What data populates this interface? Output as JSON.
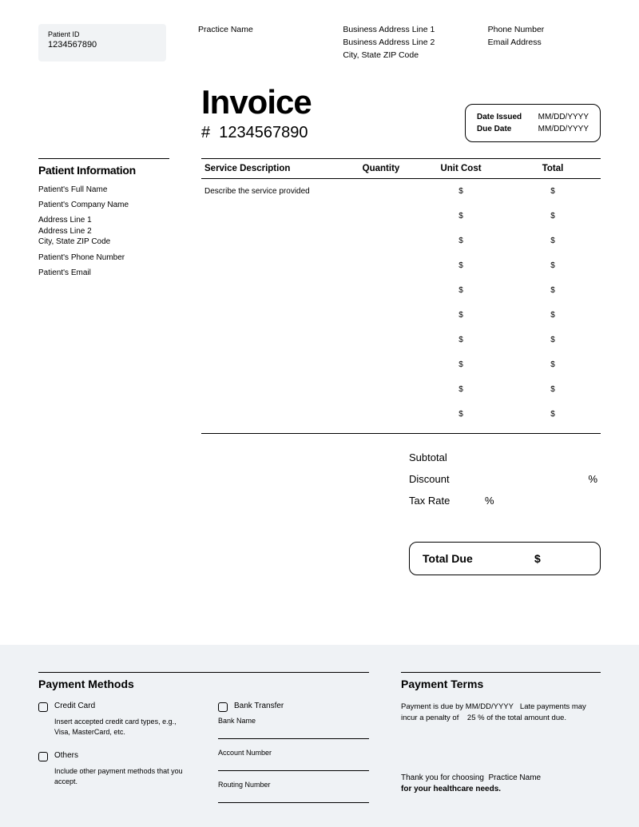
{
  "header": {
    "patient_id_label": "Patient ID",
    "patient_id_value": "1234567890",
    "practice_name": "Practice Name",
    "address_line1": "Business Address Line 1",
    "address_line2": "Business Address Line 2",
    "city_state_zip": "City, State ZIP Code",
    "phone_label": "Phone Number",
    "email_label": "Email Address"
  },
  "invoice": {
    "title": "Invoice",
    "number_prefix": "#",
    "number": "1234567890",
    "date_issued_label": "Date Issued",
    "date_issued_value": "MM/DD/YYYY",
    "due_date_label": "Due Date",
    "due_date_value": "MM/DD/YYYY"
  },
  "patient_info": {
    "title": "Patient Information",
    "full_name": "Patient's Full Name",
    "company": "Patient's Company Name",
    "addr1": "Address Line 1",
    "addr2": "Address Line 2",
    "city": "City, State ZIP Code",
    "phone": "Patient's Phone Number",
    "email": "Patient's Email"
  },
  "table": {
    "columns": [
      "Service Description",
      "Quantity",
      "Unit Cost",
      "Total"
    ],
    "rows": [
      {
        "desc": "Describe the service provided",
        "qty": "",
        "unit": "$",
        "total": "$"
      },
      {
        "desc": "",
        "qty": "",
        "unit": "$",
        "total": "$"
      },
      {
        "desc": "",
        "qty": "",
        "unit": "$",
        "total": "$"
      },
      {
        "desc": "",
        "qty": "",
        "unit": "$",
        "total": "$"
      },
      {
        "desc": "",
        "qty": "",
        "unit": "$",
        "total": "$"
      },
      {
        "desc": "",
        "qty": "",
        "unit": "$",
        "total": "$"
      },
      {
        "desc": "",
        "qty": "",
        "unit": "$",
        "total": "$"
      },
      {
        "desc": "",
        "qty": "",
        "unit": "$",
        "total": "$"
      },
      {
        "desc": "",
        "qty": "",
        "unit": "$",
        "total": "$"
      },
      {
        "desc": "",
        "qty": "",
        "unit": "$",
        "total": "$"
      }
    ]
  },
  "summary": {
    "subtotal_label": "Subtotal",
    "discount_label": "Discount",
    "discount_pct": "%",
    "tax_label": "Tax Rate",
    "tax_pct": "%"
  },
  "total_due": {
    "label": "Total Due",
    "value": "$"
  },
  "payment_methods": {
    "title": "Payment Methods",
    "credit_card": "Credit Card",
    "credit_card_desc": "Insert accepted credit card types, e.g., Visa, MasterCard, etc.",
    "others": "Others",
    "others_desc": "Include other payment methods that you accept.",
    "bank_transfer": "Bank Transfer",
    "bank_name": "Bank Name",
    "account_number": "Account Number",
    "routing_number": "Routing Number"
  },
  "payment_terms": {
    "title": "Payment Terms",
    "text_1": "Payment is due by",
    "due_date": "MM/DD/YYYY",
    "text_2": "Late payments may incur a penalty of",
    "penalty": "25",
    "text_3": "% of the total amount due."
  },
  "thanks": {
    "line1": "Thank you for choosing",
    "practice": "Practice Name",
    "line2": "for your healthcare needs."
  }
}
